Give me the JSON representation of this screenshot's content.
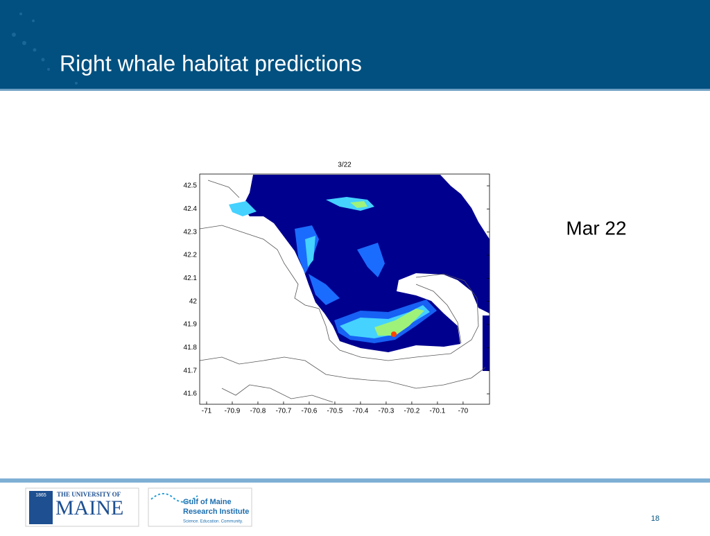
{
  "header": {
    "title": "Right whale habitat predictions"
  },
  "chart_data": {
    "type": "map",
    "title": "3/22",
    "xlim": [
      -71.027,
      -69.897
    ],
    "ylim": [
      41.555,
      42.551
    ],
    "xticks": [
      -71,
      -70.9,
      -70.8,
      -70.7,
      -70.6,
      -70.5,
      -70.4,
      -70.3,
      -70.2,
      -70.1,
      -70
    ],
    "yticks": [
      41.6,
      41.7,
      41.8,
      41.9,
      42,
      42.1,
      42.2,
      42.3,
      42.4,
      42.5
    ]
  },
  "annotation": "Mar 22",
  "footer": {
    "page": "18",
    "umaine": {
      "year": "1865",
      "line1": "THE UNIVERSITY OF",
      "line2": "MAINE"
    },
    "gmri": {
      "line1": "Gulf of Maine",
      "line2": "Research Institute",
      "tagline": "Science. Education. Community."
    }
  }
}
